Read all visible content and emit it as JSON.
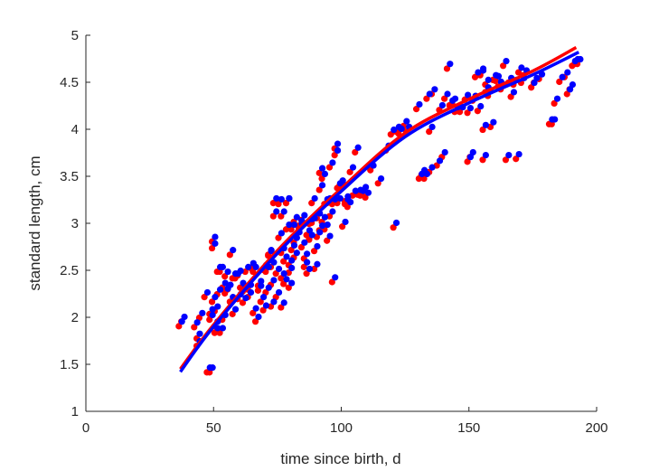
{
  "chart_data": {
    "type": "scatter",
    "title": "",
    "xlabel": "time since birth, d",
    "ylabel": "standard length, cm",
    "xlim": [
      0,
      200
    ],
    "ylim": [
      1,
      5
    ],
    "xticks": [
      "0",
      "50",
      "100",
      "150",
      "200"
    ],
    "yticks": [
      "1",
      "1.5",
      "2",
      "2.5",
      "3",
      "3.5",
      "4",
      "4.5",
      "5"
    ],
    "grid": false,
    "colors": {
      "red": "#ff0000",
      "blue": "#0000ff",
      "axis": "#262626"
    },
    "scatter_pairs": [
      [
        37,
        1.93
      ],
      [
        38,
        1.98
      ],
      [
        43,
        1.92
      ],
      [
        44,
        1.72
      ],
      [
        44,
        1.8
      ],
      [
        45,
        2.02
      ],
      [
        47,
        2.24
      ],
      [
        48,
        1.44
      ],
      [
        49,
        1.44
      ],
      [
        49,
        2.0
      ],
      [
        49,
        2.06
      ],
      [
        50,
        2.83
      ],
      [
        50,
        2.76
      ],
      [
        50,
        2.19
      ],
      [
        51,
        1.86
      ],
      [
        51,
        1.93
      ],
      [
        51,
        2.09
      ],
      [
        52,
        2.27
      ],
      [
        52,
        2.51
      ],
      [
        53,
        2.51
      ],
      [
        53,
        1.86
      ],
      [
        54,
        2.34
      ],
      [
        54,
        2.0
      ],
      [
        55,
        2.46
      ],
      [
        55,
        2.28
      ],
      [
        56,
        2.32
      ],
      [
        57,
        2.69
      ],
      [
        57,
        2.19
      ],
      [
        58,
        2.44
      ],
      [
        58,
        2.06
      ],
      [
        59,
        2.44
      ],
      [
        60,
        2.47
      ],
      [
        60,
        2.22
      ],
      [
        61,
        2.34
      ],
      [
        62,
        2.3
      ],
      [
        62,
        2.18
      ],
      [
        63,
        2.51
      ],
      [
        64,
        2.24
      ],
      [
        64,
        2.32
      ],
      [
        65,
        2.55
      ],
      [
        66,
        2.07
      ],
      [
        66,
        2.51
      ],
      [
        67,
        1.98
      ],
      [
        68,
        2.31
      ],
      [
        68,
        2.36
      ],
      [
        69,
        2.19
      ],
      [
        70,
        2.53
      ],
      [
        70,
        2.1
      ],
      [
        71,
        2.51
      ],
      [
        71,
        2.29
      ],
      [
        72,
        2.68
      ],
      [
        72,
        2.69
      ],
      [
        73,
        2.56
      ],
      [
        73,
        2.37
      ],
      [
        73,
        2.14
      ],
      [
        74,
        3.24
      ],
      [
        74,
        3.1
      ],
      [
        75,
        2.49
      ],
      [
        75,
        2.24
      ],
      [
        76,
        3.23
      ],
      [
        76,
        2.87
      ],
      [
        77,
        3.1
      ],
      [
        77,
        2.71
      ],
      [
        77,
        2.44
      ],
      [
        77,
        2.13
      ],
      [
        78,
        2.62
      ],
      [
        78,
        2.38
      ],
      [
        79,
        3.24
      ],
      [
        79,
        3.24
      ],
      [
        79,
        2.96
      ],
      [
        80,
        2.58
      ],
      [
        80,
        2.5
      ],
      [
        80,
        2.34
      ],
      [
        81,
        2.74
      ],
      [
        81,
        2.96
      ],
      [
        82,
        3.04
      ],
      [
        82,
        2.82
      ],
      [
        82,
        2.66
      ],
      [
        83,
        2.88
      ],
      [
        84,
        3.0
      ],
      [
        84,
        2.97
      ],
      [
        85,
        2.77
      ],
      [
        85,
        3.06
      ],
      [
        86,
        2.65
      ],
      [
        86,
        2.56
      ],
      [
        87,
        2.49
      ],
      [
        87,
        2.9
      ],
      [
        88,
        3.02
      ],
      [
        88,
        2.85
      ],
      [
        89,
        3.24
      ],
      [
        89,
        3.03
      ],
      [
        90,
        2.73
      ],
      [
        90,
        2.54
      ],
      [
        91,
        2.88
      ],
      [
        91,
        3.08
      ],
      [
        92,
        2.95
      ],
      [
        92,
        3.38
      ],
      [
        92,
        3.56
      ],
      [
        93,
        3.5
      ],
      [
        93,
        3.04
      ],
      [
        94,
        2.96
      ],
      [
        94,
        3.23
      ],
      [
        95,
        3.24
      ],
      [
        95,
        2.84
      ],
      [
        96,
        3.62
      ],
      [
        96,
        3.1
      ],
      [
        97,
        3.23
      ],
      [
        97,
        2.4
      ],
      [
        98,
        3.75
      ],
      [
        98,
        3.82
      ],
      [
        99,
        3.24
      ],
      [
        99,
        3.4
      ],
      [
        100,
        3.4
      ],
      [
        100,
        3.43
      ],
      [
        101,
        2.99
      ],
      [
        102,
        3.26
      ],
      [
        102,
        3.23
      ],
      [
        103,
        3.2
      ],
      [
        104,
        3.57
      ],
      [
        105,
        3.32
      ],
      [
        106,
        3.78
      ],
      [
        107,
        3.33
      ],
      [
        108,
        3.32
      ],
      [
        109,
        3.36
      ],
      [
        110,
        3.3
      ],
      [
        112,
        3.59
      ],
      [
        115,
        3.45
      ],
      [
        118,
        3.8
      ],
      [
        120,
        3.97
      ],
      [
        121,
        2.98
      ],
      [
        122,
        4.0
      ],
      [
        123,
        3.98
      ],
      [
        125,
        4.06
      ],
      [
        126,
        4.0
      ],
      [
        130,
        4.24
      ],
      [
        131,
        3.5
      ],
      [
        132,
        3.54
      ],
      [
        133,
        3.5
      ],
      [
        134,
        4.35
      ],
      [
        135,
        3.57
      ],
      [
        135,
        4.0
      ],
      [
        136,
        4.4
      ],
      [
        138,
        3.64
      ],
      [
        139,
        4.23
      ],
      [
        140,
        3.73
      ],
      [
        141,
        4.35
      ],
      [
        142,
        4.67
      ],
      [
        143,
        4.28
      ],
      [
        144,
        4.3
      ],
      [
        145,
        4.21
      ],
      [
        146,
        4.22
      ],
      [
        147,
        4.21
      ],
      [
        149,
        4.34
      ],
      [
        150,
        3.68
      ],
      [
        150,
        4.2
      ],
      [
        151,
        3.73
      ],
      [
        152,
        4.33
      ],
      [
        153,
        4.58
      ],
      [
        154,
        4.22
      ],
      [
        155,
        4.6
      ],
      [
        155,
        4.62
      ],
      [
        156,
        3.7
      ],
      [
        156,
        4.02
      ],
      [
        157,
        4.5
      ],
      [
        157,
        4.42
      ],
      [
        158,
        4.38
      ],
      [
        159,
        4.05
      ],
      [
        160,
        4.55
      ],
      [
        161,
        4.54
      ],
      [
        162,
        4.48
      ],
      [
        163,
        4.45
      ],
      [
        164,
        4.7
      ],
      [
        165,
        3.7
      ],
      [
        166,
        4.52
      ],
      [
        167,
        4.37
      ],
      [
        168,
        4.5
      ],
      [
        169,
        3.71
      ],
      [
        170,
        4.63
      ],
      [
        171,
        4.52
      ],
      [
        172,
        4.6
      ],
      [
        175,
        4.47
      ],
      [
        176,
        4.52
      ],
      [
        178,
        4.56
      ],
      [
        182,
        4.08
      ],
      [
        183,
        4.08
      ],
      [
        184,
        4.3
      ],
      [
        186,
        4.53
      ],
      [
        188,
        4.58
      ],
      [
        189,
        4.4
      ],
      [
        190,
        4.45
      ],
      [
        191,
        4.7
      ],
      [
        192,
        4.72
      ],
      [
        193,
        4.72
      ]
    ],
    "series": [
      {
        "name": "red data",
        "kind": "points",
        "color": "#ff0000",
        "offset": [
          -0.6,
          -0.025
        ]
      },
      {
        "name": "blue data",
        "kind": "points",
        "color": "#0000ff",
        "offset": [
          0.6,
          0.025
        ]
      },
      {
        "name": "red fit",
        "kind": "line",
        "color": "#ff0000",
        "x": [
          37,
          50,
          75,
          100,
          125,
          150,
          175,
          192
        ],
        "y": [
          1.45,
          1.92,
          2.71,
          3.37,
          3.96,
          4.32,
          4.62,
          4.87
        ]
      },
      {
        "name": "blue fit",
        "kind": "line",
        "color": "#0000ff",
        "x": [
          37,
          50,
          75,
          100,
          125,
          150,
          175,
          193
        ],
        "y": [
          1.42,
          1.9,
          2.68,
          3.34,
          3.92,
          4.28,
          4.58,
          4.82
        ]
      }
    ]
  }
}
